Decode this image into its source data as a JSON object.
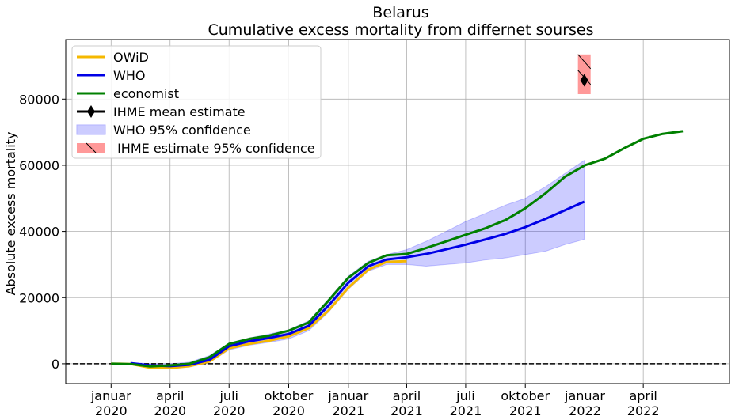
{
  "chart_data": {
    "type": "line",
    "title": "Belarus",
    "subtitle": "Cumulative excess mortality from differnet sourses",
    "ylabel": "Absolute excess mortality",
    "xlabel": "",
    "xlim": [
      "2019-10-23",
      "2022-08-12"
    ],
    "ylim": [
      -6000,
      98000
    ],
    "grid": true,
    "legend_position": "top-left",
    "x_ticks": [
      {
        "date": "2020-01-01",
        "line1": "januar",
        "line2": "2020"
      },
      {
        "date": "2020-04-01",
        "line1": "april",
        "line2": "2020"
      },
      {
        "date": "2020-07-01",
        "line1": "juli",
        "line2": "2020"
      },
      {
        "date": "2020-10-01",
        "line1": "oktober",
        "line2": "2020"
      },
      {
        "date": "2021-01-01",
        "line1": "januar",
        "line2": "2021"
      },
      {
        "date": "2021-04-01",
        "line1": "april",
        "line2": "2021"
      },
      {
        "date": "2021-07-01",
        "line1": "juli",
        "line2": "2021"
      },
      {
        "date": "2021-10-01",
        "line1": "oktober",
        "line2": "2021"
      },
      {
        "date": "2022-01-01",
        "line1": "januar",
        "line2": "2022"
      },
      {
        "date": "2022-04-01",
        "line1": "april",
        "line2": "2022"
      }
    ],
    "y_ticks": [
      0,
      20000,
      40000,
      60000,
      80000
    ],
    "y_tick_labels": [
      "0",
      "20000",
      "40000",
      "60000",
      "80000"
    ],
    "reference_line": {
      "y": 0,
      "style": "dashed",
      "color": "#000000"
    },
    "series": [
      {
        "name": "OWiD",
        "color": "#f5b800",
        "x": [
          "2020-01-01",
          "2020-01-15",
          "2020-02-01",
          "2020-03-01",
          "2020-04-01",
          "2020-05-01",
          "2020-06-01",
          "2020-07-01",
          "2020-08-01",
          "2020-09-01",
          "2020-10-01",
          "2020-11-01",
          "2020-12-01",
          "2021-01-01",
          "2021-02-01",
          "2021-03-01",
          "2021-04-01"
        ],
        "values": [
          0,
          0,
          -100,
          -1200,
          -1300,
          -700,
          700,
          4700,
          6000,
          7000,
          8300,
          10800,
          16000,
          23000,
          28500,
          30800,
          31000
        ]
      },
      {
        "name": "WHO",
        "color": "#0000e6",
        "x": [
          "2020-01-31",
          "2020-03-01",
          "2020-04-01",
          "2020-05-01",
          "2020-06-01",
          "2020-07-01",
          "2020-08-01",
          "2020-09-01",
          "2020-10-01",
          "2020-11-01",
          "2020-12-01",
          "2021-01-01",
          "2021-02-01",
          "2021-03-01",
          "2021-04-01",
          "2021-05-01",
          "2021-06-01",
          "2021-07-01",
          "2021-08-01",
          "2021-09-01",
          "2021-10-01",
          "2021-11-01",
          "2021-12-01",
          "2021-12-31"
        ],
        "values": [
          200,
          -500,
          -700,
          -300,
          1200,
          5300,
          6800,
          7800,
          9000,
          11500,
          17500,
          24500,
          29500,
          31500,
          32200,
          33200,
          34600,
          36000,
          37600,
          39300,
          41300,
          43800,
          46400,
          49000
        ]
      },
      {
        "name": "economist",
        "color": "#008000",
        "x": [
          "2020-01-01",
          "2020-02-01",
          "2020-03-01",
          "2020-04-01",
          "2020-05-01",
          "2020-06-01",
          "2020-07-01",
          "2020-08-01",
          "2020-09-01",
          "2020-10-01",
          "2020-11-01",
          "2020-12-01",
          "2021-01-01",
          "2021-02-01",
          "2021-03-01",
          "2021-04-01",
          "2021-05-01",
          "2021-06-01",
          "2021-07-01",
          "2021-08-01",
          "2021-09-01",
          "2021-10-01",
          "2021-11-01",
          "2021-12-01",
          "2022-01-01",
          "2022-02-01",
          "2022-03-01",
          "2022-04-01",
          "2022-05-01",
          "2022-06-01"
        ],
        "values": [
          0,
          -100,
          -800,
          -500,
          0,
          2000,
          6000,
          7500,
          8500,
          10000,
          12500,
          19000,
          26000,
          30500,
          32800,
          33200,
          35000,
          37000,
          39000,
          41000,
          43500,
          47000,
          51500,
          56500,
          60000,
          62000,
          65000,
          68000,
          69500,
          70300
        ]
      }
    ],
    "bands": [
      {
        "name": "WHO 95% confidence",
        "color": "#0000ff",
        "opacity": 0.2,
        "x": [
          "2020-01-31",
          "2020-03-01",
          "2020-04-01",
          "2020-05-01",
          "2020-06-01",
          "2020-07-01",
          "2020-08-01",
          "2020-09-01",
          "2020-10-01",
          "2020-11-01",
          "2020-12-01",
          "2021-01-01",
          "2021-02-01",
          "2021-03-01",
          "2021-04-01",
          "2021-05-01",
          "2021-06-01",
          "2021-07-01",
          "2021-08-01",
          "2021-09-01",
          "2021-10-01",
          "2021-11-01",
          "2021-12-01",
          "2021-12-31"
        ],
        "lower": [
          0,
          -1200,
          -1500,
          -1000,
          400,
          4200,
          5600,
          6500,
          7500,
          10000,
          15500,
          22500,
          28000,
          30000,
          30000,
          29500,
          30000,
          30500,
          31400,
          32000,
          33000,
          34000,
          36000,
          37600
        ],
        "upper": [
          400,
          0,
          0,
          500,
          2500,
          6300,
          7800,
          9000,
          10300,
          13000,
          19500,
          26500,
          31000,
          33000,
          34500,
          37000,
          40000,
          43000,
          45500,
          48000,
          50000,
          53500,
          57500,
          61500
        ]
      }
    ],
    "ihme": {
      "mean_label": "IHME mean estimate",
      "confidence_label": "IHME estimate 95% confidence",
      "date": "2021-12-31",
      "mean": 85700,
      "lower": 81500,
      "upper": 93500,
      "marker_color": "#000000",
      "band_color": "#ff9999"
    },
    "legend": [
      {
        "label": "OWiD",
        "kind": "line",
        "color": "#f5b800"
      },
      {
        "label": "WHO",
        "kind": "line",
        "color": "#0000e6"
      },
      {
        "label": "economist",
        "kind": "line",
        "color": "#008000"
      },
      {
        "label": "IHME mean estimate",
        "kind": "marker-line",
        "color": "#000000"
      },
      {
        "label": "WHO 95% confidence",
        "kind": "patch",
        "color": "#ccccff"
      },
      {
        "label": " IHME estimate 95% confidence",
        "kind": "hatched-patch",
        "color": "#ff9999"
      }
    ]
  }
}
